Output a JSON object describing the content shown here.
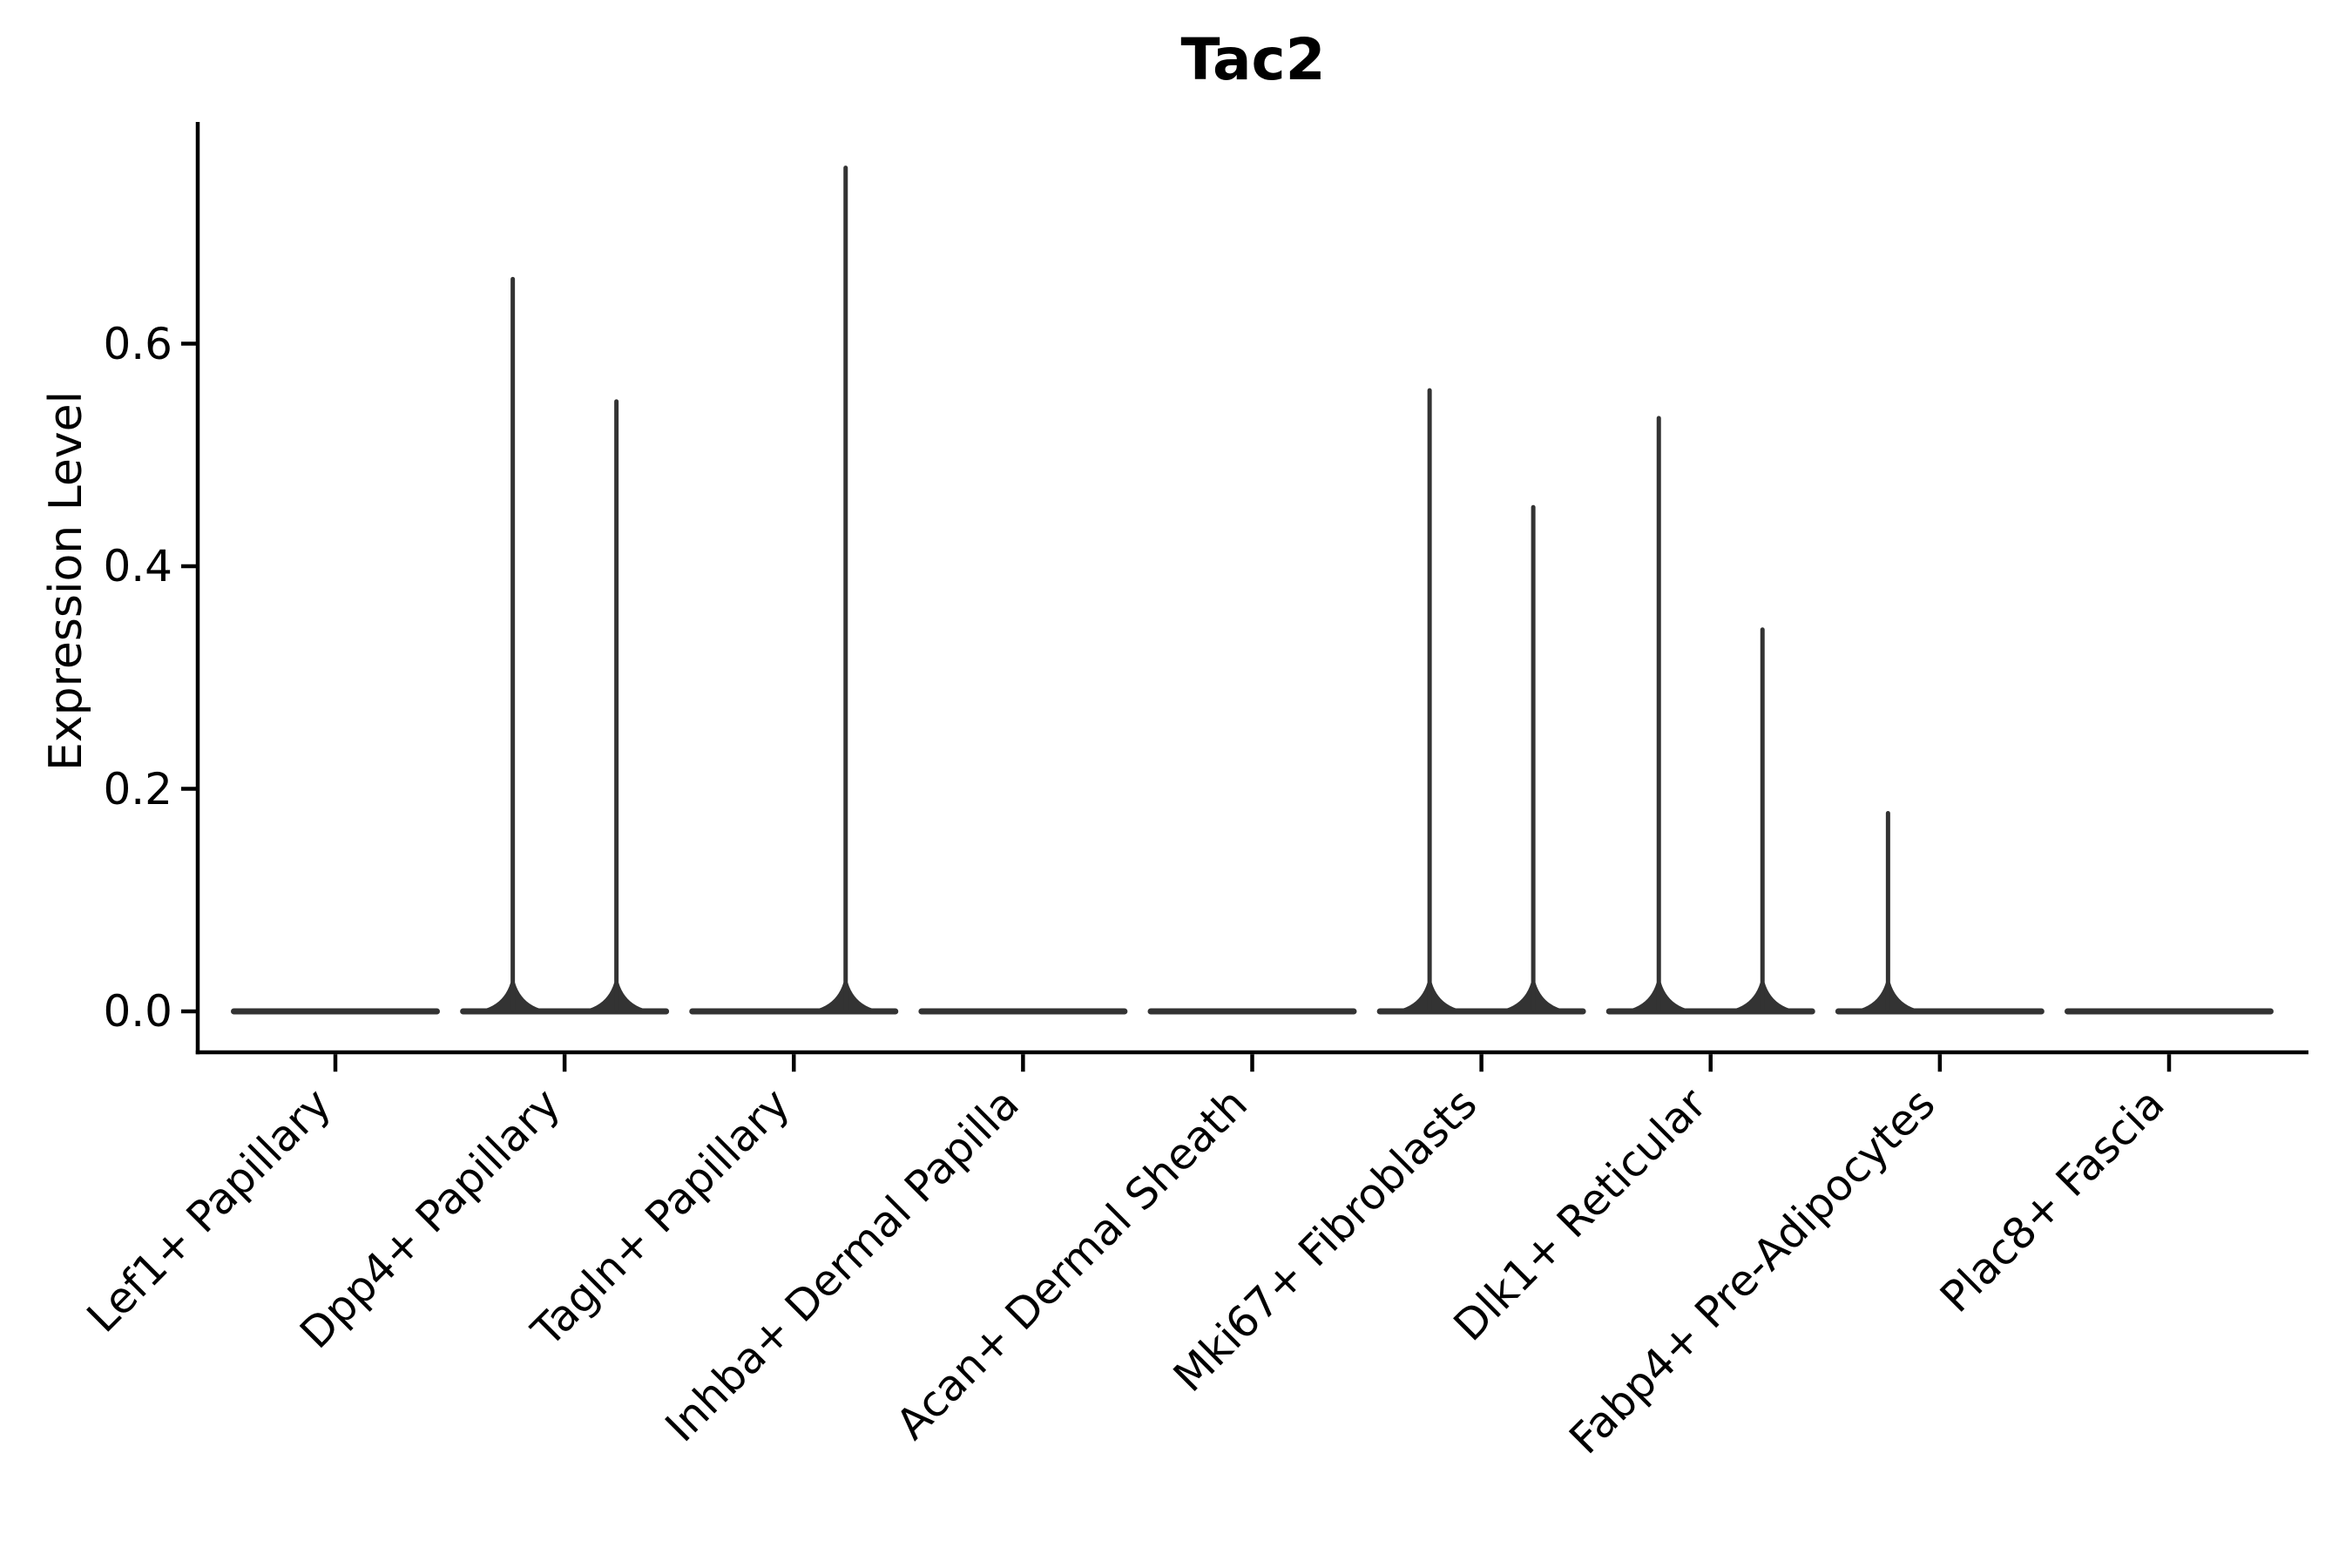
{
  "title": "Tac2",
  "y_axis": {
    "label": "Expression Level"
  },
  "chart_data": {
    "type": "violin",
    "title": "Tac2",
    "xlabel": "",
    "ylabel": "Expression Level",
    "ylim": [
      -0.04,
      0.8
    ],
    "yticks": [
      0.0,
      0.2,
      0.4,
      0.6
    ],
    "ytick_labels": [
      "0.0",
      "0.2",
      "0.4",
      "0.6"
    ],
    "grid": false,
    "legend": "none",
    "axis_color": "#000000",
    "violin_color": "#333333",
    "categories": [
      "Lef1+ Papillary",
      "Dpp4+ Papillary",
      "Tagln+ Papillary",
      "Inhba+ Dermal Papilla",
      "Acan+ Dermal Sheath",
      "Mki67+ Fibroblasts",
      "Dlk1+ Reticular",
      "Fabp4+ Pre-Adipocytes",
      "Plac8+ Fascia"
    ],
    "violins": [
      {
        "category": "Lef1+ Papillary",
        "base_value": 0,
        "spikes": []
      },
      {
        "category": "Dpp4+ Papillary",
        "base_value": 0,
        "spikes": [
          {
            "side": "left",
            "max": 0.66
          },
          {
            "side": "right",
            "max": 0.55
          }
        ]
      },
      {
        "category": "Tagln+ Papillary",
        "base_value": 0,
        "spikes": [
          {
            "side": "right",
            "max": 0.76
          }
        ]
      },
      {
        "category": "Inhba+ Dermal Papilla",
        "base_value": 0,
        "spikes": []
      },
      {
        "category": "Acan+ Dermal Sheath",
        "base_value": 0,
        "spikes": []
      },
      {
        "category": "Mki67+ Fibroblasts",
        "base_value": 0,
        "spikes": [
          {
            "side": "left",
            "max": 0.56
          },
          {
            "side": "right",
            "max": 0.455
          }
        ]
      },
      {
        "category": "Dlk1+ Reticular",
        "base_value": 0,
        "spikes": [
          {
            "side": "left",
            "max": 0.535
          },
          {
            "side": "right",
            "max": 0.345
          }
        ]
      },
      {
        "category": "Fabp4+ Pre-Adipocytes",
        "base_value": 0,
        "spikes": [
          {
            "side": "left",
            "max": 0.18
          }
        ]
      },
      {
        "category": "Plac8+ Fascia",
        "base_value": 0,
        "spikes": []
      }
    ]
  }
}
